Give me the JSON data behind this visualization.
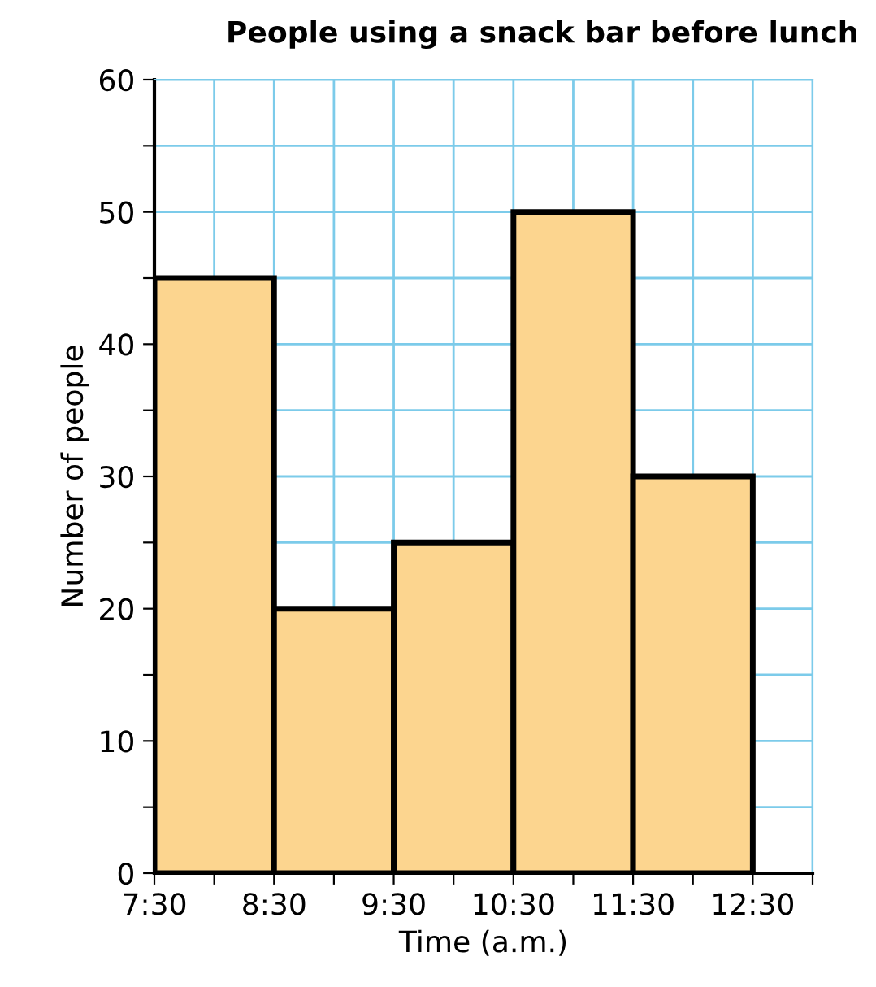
{
  "chart_data": {
    "type": "histogram",
    "title": "People using a snack bar before lunch",
    "xlabel": "Time (a.m.)",
    "ylabel": "Number of people",
    "bins": [
      7.5,
      8.5,
      9.5,
      10.5,
      11.5,
      12.5
    ],
    "values": [
      45,
      20,
      25,
      50,
      30
    ],
    "color": "#fcd58f",
    "xlim": [
      7.5,
      13
    ],
    "xticks": [
      {
        "value": 7.5,
        "label": "7:30"
      },
      {
        "value": 8,
        "label": null
      },
      {
        "value": 8.5,
        "label": "8:30"
      },
      {
        "value": 9,
        "label": null
      },
      {
        "value": 9.5,
        "label": "9:30"
      },
      {
        "value": 10,
        "label": null
      },
      {
        "value": 10.5,
        "label": "10:30"
      },
      {
        "value": 11,
        "label": null
      },
      {
        "value": 11.5,
        "label": "11:30"
      },
      {
        "value": 12,
        "label": null
      },
      {
        "value": 12.5,
        "label": "12:30"
      },
      {
        "value": 13,
        "label": null
      }
    ],
    "ylim": [
      0,
      60
    ],
    "yticks": [
      0,
      {
        "value": 5,
        "label": null
      },
      10,
      {
        "value": 15,
        "label": null
      },
      20,
      {
        "value": 25,
        "label": null
      },
      30,
      {
        "value": 35,
        "label": null
      },
      40,
      {
        "value": 45,
        "label": null
      },
      50,
      {
        "value": 55,
        "label": null
      },
      60
    ],
    "grid": true
  }
}
